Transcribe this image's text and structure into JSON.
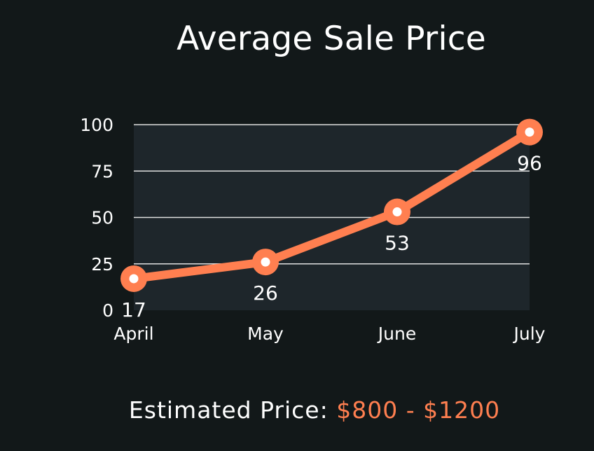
{
  "colors": {
    "background": "#121819",
    "plot_background": "#1e262b",
    "grid": "#e0e0e0",
    "line": "#ff7f50",
    "marker_center": "#ffffff",
    "text": "#ffffff",
    "accent": "#ff7f50"
  },
  "chart_data": {
    "type": "line",
    "title": "Average Sale Price",
    "xlabel": "",
    "ylabel": "",
    "categories": [
      "April",
      "May",
      "June",
      "July"
    ],
    "series": [
      {
        "name": "",
        "values": [
          17,
          26,
          53,
          96
        ]
      }
    ],
    "data_labels": [
      "17",
      "26",
      "53",
      "96"
    ],
    "yticks": [
      0,
      25,
      50,
      75,
      100
    ],
    "ytick_labels": [
      "0",
      "25",
      "50",
      "75",
      "100"
    ],
    "ylim": [
      0,
      100
    ],
    "grid": true,
    "legend": "none"
  },
  "footer": {
    "label": "Estimated Price:",
    "price": "$800 - $1200"
  }
}
